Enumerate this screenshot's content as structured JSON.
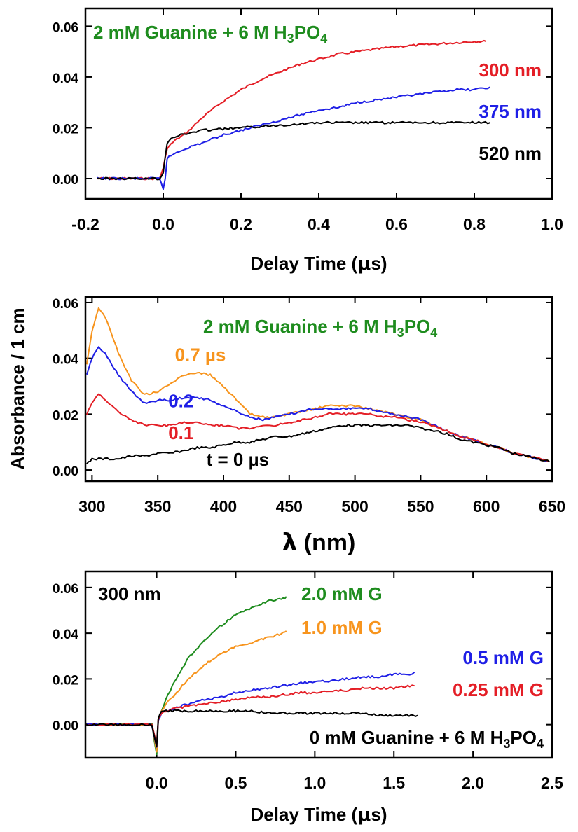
{
  "chart_data": [
    {
      "type": "line",
      "xlabel_main": "Delay Time (",
      "xlabel_sym": "μ",
      "xlabel_tail": "s)",
      "ylabel": "",
      "xlim": [
        -0.2,
        1.0
      ],
      "ylim": [
        -0.008,
        0.067
      ],
      "xticks": [
        "-0.2",
        "0.0",
        "0.2",
        "0.4",
        "0.6",
        "0.8",
        "1.0"
      ],
      "yticks": [
        "0.00",
        "0.02",
        "0.04",
        "0.06"
      ],
      "annotation": "2 mM Guanine + 6 M H₃PO₄",
      "series": [
        {
          "name": "300 nm",
          "color": "#e41e26",
          "x": [
            -0.17,
            -0.1,
            -0.05,
            -0.01,
            0.0,
            0.01,
            0.03,
            0.06,
            0.1,
            0.15,
            0.2,
            0.25,
            0.3,
            0.35,
            0.4,
            0.45,
            0.5,
            0.55,
            0.6,
            0.65,
            0.7,
            0.75,
            0.8,
            0.83
          ],
          "y": [
            0.0,
            0.0,
            0.0,
            0.0,
            0.004,
            0.012,
            0.015,
            0.018,
            0.024,
            0.03,
            0.035,
            0.039,
            0.042,
            0.045,
            0.047,
            0.049,
            0.05,
            0.051,
            0.052,
            0.0525,
            0.053,
            0.0535,
            0.054,
            0.054
          ]
        },
        {
          "name": "375 nm",
          "color": "#1f1fe6",
          "x": [
            -0.17,
            -0.1,
            -0.05,
            -0.01,
            0.0,
            0.005,
            0.01,
            0.03,
            0.06,
            0.1,
            0.15,
            0.2,
            0.25,
            0.3,
            0.35,
            0.4,
            0.45,
            0.5,
            0.55,
            0.6,
            0.65,
            0.7,
            0.75,
            0.8,
            0.84
          ],
          "y": [
            0.0,
            0.0,
            0.0,
            0.0,
            -0.004,
            0.0,
            0.008,
            0.01,
            0.012,
            0.014,
            0.017,
            0.019,
            0.021,
            0.023,
            0.025,
            0.027,
            0.028,
            0.03,
            0.031,
            0.032,
            0.033,
            0.034,
            0.035,
            0.035,
            0.036
          ]
        },
        {
          "name": "520 nm",
          "color": "#000000",
          "x": [
            -0.17,
            -0.1,
            -0.05,
            -0.01,
            0.0,
            0.005,
            0.01,
            0.02,
            0.04,
            0.07,
            0.1,
            0.2,
            0.3,
            0.4,
            0.5,
            0.6,
            0.7,
            0.8,
            0.84
          ],
          "y": [
            0.0,
            0.0,
            0.0,
            0.0,
            0.002,
            0.009,
            0.014,
            0.016,
            0.017,
            0.018,
            0.019,
            0.02,
            0.021,
            0.022,
            0.022,
            0.022,
            0.022,
            0.022,
            0.022
          ]
        }
      ]
    },
    {
      "type": "line",
      "xlabel_sym": "λ",
      "xlabel_tail": " (nm)",
      "ylabel": "Absorbance / 1 cm",
      "xlim": [
        295,
        650
      ],
      "ylim": [
        -0.004,
        0.062
      ],
      "xticks": [
        "300",
        "350",
        "400",
        "450",
        "500",
        "550",
        "600",
        "650"
      ],
      "yticks": [
        "0.00",
        "0.02",
        "0.04",
        "0.06"
      ],
      "annotation": "2 mM Guanine + 6 M H₃PO₄",
      "series": [
        {
          "name": "0.7 µs",
          "color": "#f7941d",
          "x": [
            296,
            300,
            305,
            310,
            320,
            330,
            340,
            350,
            360,
            370,
            380,
            390,
            400,
            410,
            420,
            430,
            440,
            450,
            460,
            470,
            480,
            490,
            500,
            510,
            520,
            530,
            540,
            550,
            560,
            570,
            580,
            590,
            600,
            610,
            620,
            630,
            640,
            648
          ],
          "y": [
            0.038,
            0.05,
            0.058,
            0.055,
            0.042,
            0.032,
            0.027,
            0.028,
            0.031,
            0.034,
            0.035,
            0.034,
            0.03,
            0.025,
            0.02,
            0.019,
            0.019,
            0.02,
            0.021,
            0.022,
            0.023,
            0.023,
            0.023,
            0.022,
            0.021,
            0.02,
            0.019,
            0.018,
            0.016,
            0.014,
            0.012,
            0.011,
            0.009,
            0.008,
            0.006,
            0.005,
            0.004,
            0.003
          ]
        },
        {
          "name": "0.2",
          "color": "#1f1fe6",
          "x": [
            296,
            300,
            305,
            310,
            320,
            330,
            340,
            350,
            360,
            370,
            380,
            390,
            400,
            410,
            420,
            430,
            440,
            450,
            460,
            470,
            480,
            490,
            500,
            510,
            520,
            530,
            540,
            550,
            560,
            570,
            580,
            590,
            600,
            610,
            620,
            630,
            640,
            648
          ],
          "y": [
            0.034,
            0.04,
            0.044,
            0.042,
            0.034,
            0.028,
            0.024,
            0.025,
            0.025,
            0.026,
            0.026,
            0.025,
            0.023,
            0.021,
            0.019,
            0.018,
            0.019,
            0.02,
            0.021,
            0.022,
            0.022,
            0.022,
            0.022,
            0.022,
            0.021,
            0.02,
            0.019,
            0.018,
            0.016,
            0.014,
            0.012,
            0.011,
            0.009,
            0.008,
            0.006,
            0.005,
            0.004,
            0.003
          ]
        },
        {
          "name": "0.1",
          "color": "#e41e26",
          "x": [
            296,
            300,
            305,
            310,
            320,
            330,
            340,
            350,
            360,
            370,
            380,
            390,
            400,
            410,
            420,
            430,
            440,
            450,
            460,
            470,
            480,
            490,
            500,
            510,
            520,
            530,
            540,
            550,
            560,
            570,
            580,
            590,
            600,
            610,
            620,
            630,
            640,
            648
          ],
          "y": [
            0.02,
            0.024,
            0.027,
            0.025,
            0.021,
            0.018,
            0.016,
            0.016,
            0.016,
            0.017,
            0.017,
            0.016,
            0.016,
            0.015,
            0.015,
            0.016,
            0.016,
            0.017,
            0.018,
            0.019,
            0.02,
            0.02,
            0.02,
            0.02,
            0.019,
            0.019,
            0.018,
            0.017,
            0.016,
            0.014,
            0.012,
            0.011,
            0.009,
            0.008,
            0.006,
            0.005,
            0.004,
            0.003
          ]
        },
        {
          "name": "t = 0 µs",
          "color": "#000000",
          "x": [
            296,
            300,
            310,
            320,
            330,
            340,
            350,
            360,
            370,
            380,
            390,
            400,
            410,
            420,
            430,
            440,
            450,
            460,
            470,
            480,
            490,
            500,
            510,
            520,
            530,
            540,
            550,
            560,
            570,
            580,
            590,
            600,
            610,
            620,
            630,
            640,
            648
          ],
          "y": [
            0.002,
            0.004,
            0.004,
            0.004,
            0.005,
            0.005,
            0.006,
            0.006,
            0.007,
            0.008,
            0.008,
            0.009,
            0.01,
            0.01,
            0.011,
            0.012,
            0.012,
            0.013,
            0.014,
            0.015,
            0.016,
            0.016,
            0.016,
            0.016,
            0.016,
            0.016,
            0.015,
            0.014,
            0.013,
            0.011,
            0.01,
            0.009,
            0.008,
            0.006,
            0.005,
            0.004,
            0.003
          ]
        }
      ],
      "labels": [
        {
          "text": "0.7 µs",
          "color": "#f7941d",
          "at": [
            363,
            0.039
          ]
        },
        {
          "text": "0.2",
          "color": "#1f1fe6",
          "at": [
            358,
            0.0225
          ]
        },
        {
          "text": "0.1",
          "color": "#e41e26",
          "at": [
            358,
            0.011
          ]
        },
        {
          "text": "t = 0 µs",
          "color": "#000000",
          "at": [
            387,
            0.0015
          ]
        }
      ]
    },
    {
      "type": "line",
      "xlabel_main": "Delay Time (",
      "xlabel_sym": "μ",
      "xlabel_tail": "s)",
      "ylabel": "",
      "xlim": [
        -0.45,
        2.5
      ],
      "ylim": [
        -0.0145,
        0.067
      ],
      "xticks": [
        "0.0",
        "0.5",
        "1.0",
        "1.5",
        "2.0",
        "2.5"
      ],
      "yticks": [
        "0.00",
        "0.02",
        "0.04",
        "0.06"
      ],
      "annotation_left": "300 nm",
      "annotation_bottom": "0 mM Guanine + 6 M H₃PO₄",
      "series": [
        {
          "name": "2.0 mM G",
          "color": "#1e8c1e",
          "x": [
            -0.45,
            -0.3,
            -0.15,
            -0.03,
            0.0,
            0.01,
            0.03,
            0.06,
            0.1,
            0.15,
            0.2,
            0.3,
            0.4,
            0.5,
            0.6,
            0.7,
            0.8,
            0.82
          ],
          "y": [
            0.0,
            0.0,
            0.0,
            0.0,
            -0.013,
            0.002,
            0.006,
            0.011,
            0.017,
            0.023,
            0.029,
            0.037,
            0.043,
            0.048,
            0.051,
            0.054,
            0.055,
            0.056
          ]
        },
        {
          "name": "1.0 mM G",
          "color": "#f7941d",
          "x": [
            -0.45,
            -0.3,
            -0.15,
            -0.03,
            0.0,
            0.01,
            0.03,
            0.06,
            0.1,
            0.15,
            0.2,
            0.3,
            0.4,
            0.5,
            0.6,
            0.7,
            0.8,
            0.82
          ],
          "y": [
            0.0,
            0.0,
            0.0,
            0.0,
            -0.012,
            0.002,
            0.006,
            0.009,
            0.012,
            0.016,
            0.02,
            0.026,
            0.031,
            0.034,
            0.036,
            0.038,
            0.04,
            0.041
          ]
        },
        {
          "name": "0.5 mM G",
          "color": "#1f1fe6",
          "x": [
            -0.45,
            -0.3,
            -0.15,
            -0.03,
            0.0,
            0.01,
            0.03,
            0.06,
            0.1,
            0.2,
            0.3,
            0.4,
            0.5,
            0.6,
            0.7,
            0.8,
            0.9,
            1.0,
            1.1,
            1.2,
            1.3,
            1.4,
            1.5,
            1.6,
            1.63
          ],
          "y": [
            0.0,
            0.0,
            0.0,
            0.0,
            -0.01,
            0.002,
            0.005,
            0.006,
            0.007,
            0.009,
            0.011,
            0.012,
            0.014,
            0.015,
            0.016,
            0.017,
            0.018,
            0.019,
            0.019,
            0.02,
            0.021,
            0.021,
            0.022,
            0.022,
            0.023
          ]
        },
        {
          "name": "0.25 mM G",
          "color": "#e41e26",
          "x": [
            -0.45,
            -0.3,
            -0.15,
            -0.03,
            0.0,
            0.01,
            0.03,
            0.06,
            0.1,
            0.2,
            0.3,
            0.4,
            0.5,
            0.6,
            0.7,
            0.8,
            0.9,
            1.0,
            1.1,
            1.2,
            1.3,
            1.4,
            1.5,
            1.6,
            1.63
          ],
          "y": [
            0.0,
            0.0,
            0.0,
            0.0,
            -0.009,
            0.002,
            0.005,
            0.006,
            0.007,
            0.008,
            0.009,
            0.01,
            0.011,
            0.012,
            0.012,
            0.013,
            0.014,
            0.014,
            0.015,
            0.015,
            0.016,
            0.016,
            0.016,
            0.017,
            0.017
          ]
        },
        {
          "name": "0 mM",
          "color": "#000000",
          "x": [
            -0.45,
            -0.3,
            -0.15,
            -0.03,
            0.0,
            0.01,
            0.03,
            0.06,
            0.1,
            0.2,
            0.3,
            0.4,
            0.5,
            0.6,
            0.7,
            0.8,
            0.9,
            1.0,
            1.1,
            1.2,
            1.3,
            1.4,
            1.5,
            1.65
          ],
          "y": [
            0.0,
            0.0,
            0.0,
            0.0,
            -0.01,
            0.003,
            0.006,
            0.006,
            0.006,
            0.006,
            0.006,
            0.006,
            0.006,
            0.006,
            0.005,
            0.005,
            0.005,
            0.005,
            0.005,
            0.005,
            0.005,
            0.004,
            0.004,
            0.004
          ]
        }
      ]
    }
  ],
  "colors": {
    "green": "#1e8c1e",
    "axis": "#000000"
  }
}
